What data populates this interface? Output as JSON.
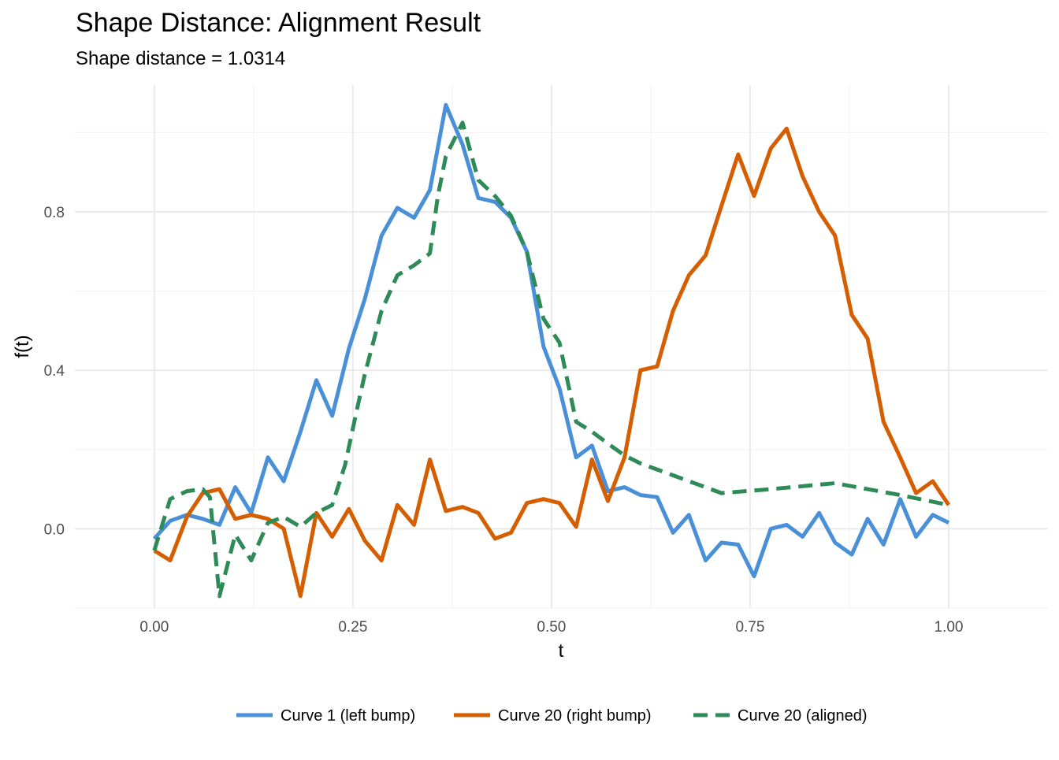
{
  "chart_data": {
    "type": "line",
    "title": "Shape Distance: Alignment Result",
    "subtitle": "Shape distance = 1.0314",
    "xlabel": "t",
    "ylabel": "f(t)",
    "xlim": [
      -0.1,
      1.125
    ],
    "ylim": [
      -0.2,
      1.12
    ],
    "x_ticks": [
      0.0,
      0.25,
      0.5,
      0.75,
      1.0
    ],
    "x_tick_labels": [
      "0.00",
      "0.25",
      "0.50",
      "0.75",
      "1.00"
    ],
    "y_ticks": [
      0.0,
      0.4,
      0.8
    ],
    "y_tick_labels": [
      "0.0",
      "0.4",
      "0.8"
    ],
    "grid": true,
    "legend_position": "bottom",
    "x": [
      0.0,
      0.02,
      0.041,
      0.061,
      0.082,
      0.102,
      0.122,
      0.143,
      0.163,
      0.184,
      0.204,
      0.224,
      0.245,
      0.265,
      0.286,
      0.306,
      0.327,
      0.347,
      0.367,
      0.388,
      0.408,
      0.429,
      0.449,
      0.469,
      0.49,
      0.51,
      0.531,
      0.551,
      0.571,
      0.592,
      0.612,
      0.633,
      0.653,
      0.673,
      0.694,
      0.714,
      0.735,
      0.755,
      0.776,
      0.796,
      0.816,
      0.837,
      0.857,
      0.878,
      0.898,
      0.918,
      0.939,
      0.959,
      0.98,
      1.0
    ],
    "series": [
      {
        "name": "Curve 1 (left bump)",
        "color": "#4a90d9",
        "dash": "solid",
        "values": [
          -0.025,
          0.02,
          0.035,
          0.025,
          0.01,
          0.105,
          0.04,
          0.18,
          0.12,
          0.245,
          0.375,
          0.285,
          0.455,
          0.58,
          0.74,
          0.81,
          0.785,
          0.855,
          1.07,
          0.97,
          0.835,
          0.825,
          0.785,
          0.7,
          0.46,
          0.355,
          0.18,
          0.21,
          0.095,
          0.105,
          0.085,
          0.08,
          -0.01,
          0.035,
          -0.08,
          -0.035,
          -0.04,
          -0.12,
          0.0,
          0.01,
          -0.02,
          0.04,
          -0.035,
          -0.065,
          0.025,
          -0.04,
          0.075,
          -0.02,
          0.035,
          0.015
        ]
      },
      {
        "name": "Curve 20 (right bump)",
        "color": "#d55e00",
        "dash": "solid",
        "values": [
          -0.055,
          -0.08,
          0.03,
          0.09,
          0.1,
          0.025,
          0.035,
          0.025,
          0.0,
          -0.17,
          0.04,
          -0.02,
          0.05,
          -0.03,
          -0.08,
          0.06,
          0.01,
          0.175,
          0.045,
          0.055,
          0.04,
          -0.025,
          -0.01,
          0.065,
          0.075,
          0.065,
          0.005,
          0.175,
          0.07,
          0.18,
          0.4,
          0.41,
          0.55,
          0.64,
          0.69,
          0.815,
          0.945,
          0.84,
          0.96,
          1.01,
          0.89,
          0.8,
          0.74,
          0.54,
          0.48,
          0.27,
          0.18,
          0.09,
          0.12,
          0.06
        ]
      },
      {
        "name": "Curve 20 (aligned)",
        "color": "#2e8b57",
        "dash": "dashed",
        "x": [
          0.0,
          0.02,
          0.041,
          0.061,
          0.07,
          0.082,
          0.102,
          0.122,
          0.143,
          0.163,
          0.184,
          0.204,
          0.224,
          0.24,
          0.255,
          0.265,
          0.286,
          0.306,
          0.327,
          0.347,
          0.357,
          0.367,
          0.388,
          0.408,
          0.429,
          0.449,
          0.469,
          0.49,
          0.51,
          0.531,
          0.551,
          0.571,
          0.592,
          0.612,
          0.653,
          0.714,
          0.776,
          0.857,
          0.898,
          0.939,
          1.0
        ],
        "values": [
          -0.055,
          0.075,
          0.095,
          0.1,
          0.08,
          -0.17,
          -0.015,
          -0.08,
          0.015,
          0.03,
          0.005,
          0.04,
          0.06,
          0.16,
          0.3,
          0.39,
          0.55,
          0.64,
          0.665,
          0.695,
          0.84,
          0.94,
          1.025,
          0.88,
          0.84,
          0.79,
          0.7,
          0.53,
          0.47,
          0.27,
          0.245,
          0.215,
          0.185,
          0.165,
          0.135,
          0.09,
          0.1,
          0.115,
          0.1,
          0.085,
          0.06
        ]
      }
    ]
  }
}
